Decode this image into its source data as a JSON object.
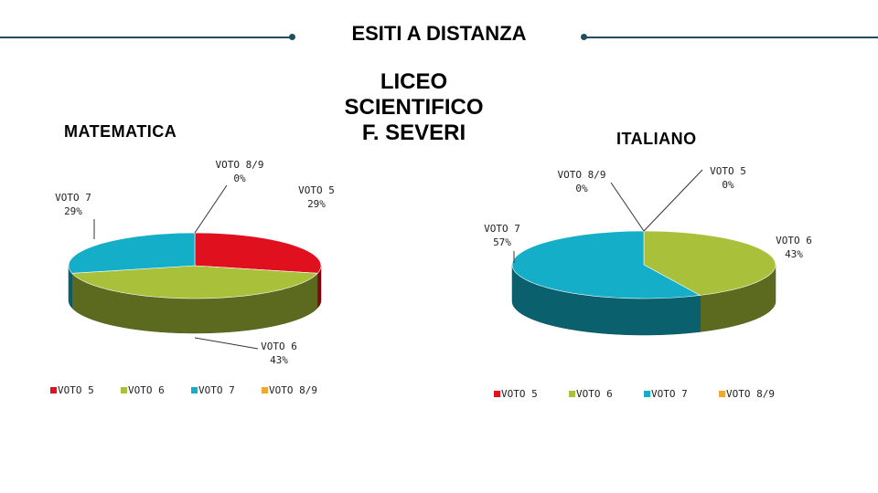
{
  "header": {
    "title": "ESITI A DISTANZA",
    "school_lines": [
      "LICEO",
      "SCIENTIFICO",
      "F. SEVERI"
    ]
  },
  "colors": {
    "voto5": "#e0101e",
    "voto6": "#a8c03a",
    "voto7": "#14aec8",
    "voto89": "#f0a830",
    "rule": "#1f4e5f"
  },
  "chart_data": [
    {
      "type": "pie",
      "title": "MATEMATICA",
      "slices": [
        {
          "name": "VOTO 5",
          "value": 29,
          "label": "29%"
        },
        {
          "name": "VOTO 6",
          "value": 43,
          "label": "43%"
        },
        {
          "name": "VOTO 7",
          "value": 29,
          "label": "29%"
        },
        {
          "name": "VOTO 8/9",
          "value": 0,
          "label": "0%"
        }
      ],
      "legend": [
        "VOTO 5",
        "VOTO 6",
        "VOTO 7",
        "VOTO 8/9"
      ],
      "legend_placement": "bottom"
    },
    {
      "type": "pie",
      "title": "ITALIANO",
      "slices": [
        {
          "name": "VOTO 5",
          "value": 0,
          "label": "0%"
        },
        {
          "name": "VOTO 6",
          "value": 43,
          "label": "43%"
        },
        {
          "name": "VOTO 7",
          "value": 57,
          "label": "57%"
        },
        {
          "name": "VOTO 8/9",
          "value": 0,
          "label": "0%"
        }
      ],
      "legend": [
        "VOTO 5",
        "VOTO 6",
        "VOTO 7",
        "VOTO 8/9"
      ],
      "legend_placement": "bottom"
    }
  ]
}
